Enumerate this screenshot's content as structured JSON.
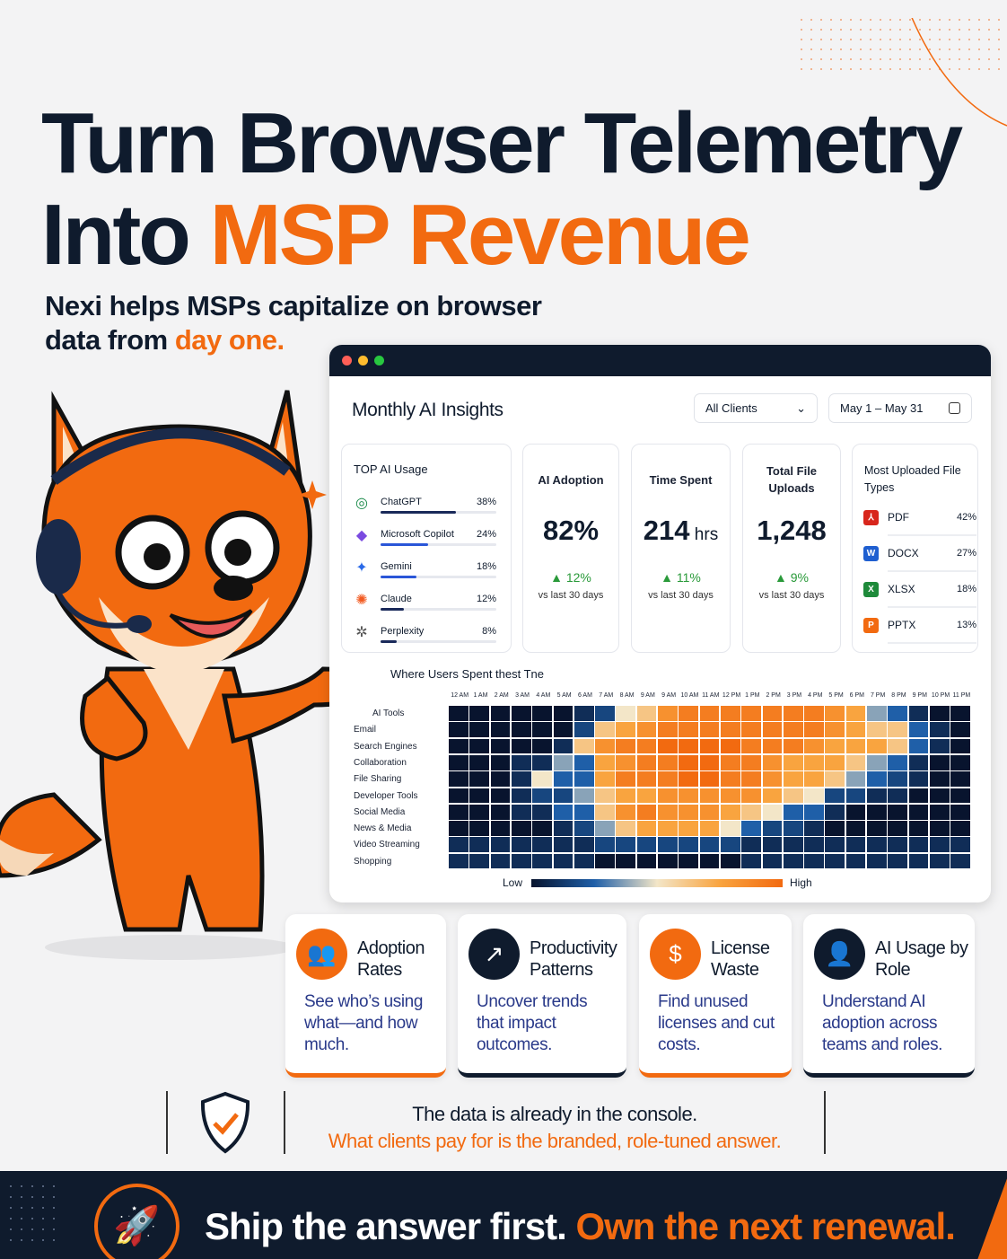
{
  "headline": {
    "line1": "Turn Browser Telemetry",
    "line2_a": "Into ",
    "line2_b": "MSP Revenue"
  },
  "subhead": {
    "line1": "Nexi helps MSPs capitalize on browser",
    "line2_a": "data from ",
    "line2_b": "day one."
  },
  "dashboard": {
    "title": "Monthly AI Insights",
    "client_filter": "All Clients",
    "date_range": "May 1 – May 31",
    "top_ai": {
      "title": "TOP AI Usage",
      "items": [
        {
          "name": "ChatGPT",
          "pct": "38%",
          "value": 38,
          "color": "#1a2a5a",
          "icon": "chatgpt-icon"
        },
        {
          "name": "Microsoft Copilot",
          "pct": "24%",
          "value": 24,
          "color": "#2a56d8",
          "icon": "copilot-icon"
        },
        {
          "name": "Gemini",
          "pct": "18%",
          "value": 18,
          "color": "#2a56d8",
          "icon": "gemini-icon"
        },
        {
          "name": "Claude",
          "pct": "12%",
          "value": 12,
          "color": "#1a2a5a",
          "icon": "claude-icon"
        },
        {
          "name": "Perplexity",
          "pct": "8%",
          "value": 8,
          "color": "#1a2a5a",
          "icon": "perplexity-icon"
        }
      ]
    },
    "stats": [
      {
        "title": "AI Adoption",
        "value": "82%",
        "unit": "",
        "delta": "▲ 12%",
        "vs": "vs last 30 days"
      },
      {
        "title": "Time Spent",
        "value": "214",
        "unit": " hrs",
        "delta": "▲ 11%",
        "vs": "vs last 30 days"
      },
      {
        "title": "Total File Uploads",
        "value": "1,248",
        "unit": "",
        "delta": "▲ 9%",
        "vs": "vs last 30 days"
      }
    ],
    "file_types": {
      "title": "Most Uploaded File Types",
      "items": [
        {
          "name": "PDF",
          "pct": "42%",
          "badge": "⅄",
          "color": "#d8261c"
        },
        {
          "name": "DOCX",
          "pct": "27%",
          "badge": "W",
          "color": "#1f5fd0"
        },
        {
          "name": "XLSX",
          "pct": "18%",
          "badge": "X",
          "color": "#1e8a3a"
        },
        {
          "name": "PPTX",
          "pct": "13%",
          "badge": "P",
          "color": "#f26a10"
        }
      ]
    },
    "heatmap": {
      "title": "Where Users Spent thest Tne",
      "columns": [
        "12 AM",
        "1 AM",
        "2 AM",
        "3 AM",
        "4 AM",
        "5 AM",
        "6 AM",
        "7 AM",
        "8 AM",
        "9 AM",
        "9 AM",
        "10 AM",
        "11 AM",
        "12 PM",
        "1 PM",
        "2 PM",
        "3 PM",
        "4 PM",
        "5 PM",
        "6 PM",
        "7 PM",
        "8 PM",
        "9 PM",
        "10 PM",
        "11 PM"
      ],
      "rows": [
        "AI Tools",
        "Email",
        "Search Engines",
        "Collaboration",
        "File Sharing",
        "Developer Tools",
        "Social Media",
        "News & Media",
        "Video Streaming",
        "Shopping"
      ],
      "values": [
        [
          0,
          0,
          0,
          0,
          0,
          0,
          1,
          2,
          5,
          6,
          8,
          9,
          9,
          9,
          9,
          9,
          9,
          9,
          8,
          7,
          4,
          3,
          1,
          0,
          0
        ],
        [
          0,
          0,
          0,
          0,
          0,
          0,
          2,
          6,
          7,
          8,
          9,
          9,
          9,
          9,
          9,
          9,
          9,
          9,
          8,
          7,
          6,
          6,
          3,
          1,
          0
        ],
        [
          0,
          0,
          0,
          0,
          0,
          1,
          6,
          8,
          9,
          9,
          10,
          10,
          10,
          10,
          9,
          9,
          9,
          8,
          7,
          7,
          7,
          6,
          3,
          1,
          0
        ],
        [
          0,
          0,
          0,
          1,
          1,
          4,
          3,
          7,
          8,
          9,
          9,
          10,
          10,
          9,
          9,
          8,
          7,
          7,
          7,
          6,
          4,
          3,
          1,
          0,
          0
        ],
        [
          0,
          0,
          0,
          1,
          5,
          3,
          3,
          7,
          9,
          9,
          9,
          10,
          10,
          9,
          9,
          8,
          7,
          7,
          6,
          4,
          3,
          2,
          1,
          0,
          0
        ],
        [
          0,
          0,
          0,
          1,
          2,
          2,
          4,
          6,
          7,
          7,
          8,
          8,
          8,
          8,
          8,
          7,
          6,
          5,
          2,
          2,
          1,
          1,
          0,
          0,
          0
        ],
        [
          0,
          0,
          0,
          1,
          1,
          3,
          3,
          6,
          8,
          9,
          8,
          8,
          8,
          7,
          6,
          5,
          3,
          3,
          1,
          0,
          0,
          0,
          0,
          0,
          0
        ],
        [
          0,
          0,
          0,
          0,
          0,
          1,
          2,
          4,
          6,
          7,
          7,
          7,
          7,
          5,
          3,
          2,
          2,
          1,
          0,
          0,
          0,
          0,
          0,
          0,
          0
        ],
        [
          1,
          1,
          1,
          1,
          1,
          1,
          1,
          2,
          2,
          2,
          2,
          2,
          2,
          2,
          1,
          1,
          1,
          1,
          1,
          1,
          1,
          1,
          1,
          1,
          1
        ],
        [
          1,
          1,
          1,
          1,
          1,
          1,
          1,
          0,
          0,
          0,
          0,
          0,
          0,
          0,
          1,
          1,
          1,
          1,
          1,
          1,
          1,
          1,
          1,
          1,
          1
        ]
      ],
      "legend_low": "Low",
      "legend_high": "High"
    }
  },
  "features": [
    {
      "title": "Adoption Rates",
      "desc": "See who’s using what—and how much.",
      "icon": "people-icon",
      "accent": "#f26a10"
    },
    {
      "title": "Productivity Patterns",
      "desc": "Uncover trends that impact outcomes.",
      "icon": "trend-up-icon",
      "accent": "#0f1b2d"
    },
    {
      "title": "License Waste",
      "desc": "Find unused licenses and cut costs.",
      "icon": "dollar-icon",
      "accent": "#f26a10"
    },
    {
      "title": "AI Usage by Role",
      "desc": "Understand AI adoption across teams and roles.",
      "icon": "user-role-icon",
      "accent": "#0f1b2d"
    }
  ],
  "message": {
    "line1": "The data is already in the console.",
    "line2": "What clients pay for is the branded, role-tuned answer."
  },
  "banner": {
    "text_a": "Ship the answer first. ",
    "text_b": "Own the next renewal."
  },
  "colors": {
    "navy": "#0f1b2d",
    "orange": "#f26a10"
  }
}
